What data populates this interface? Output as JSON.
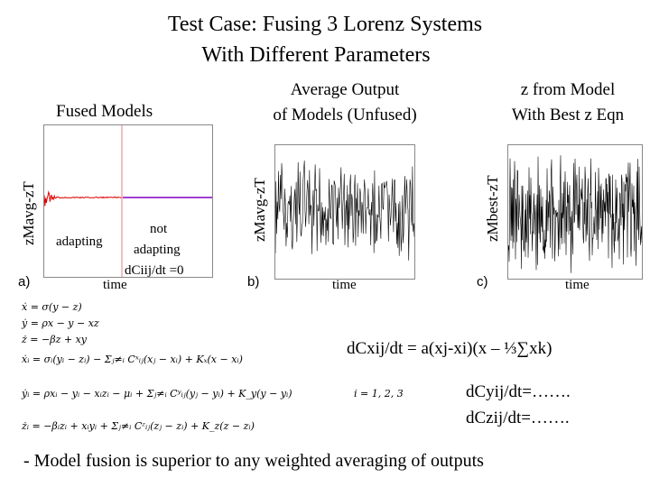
{
  "title": {
    "line1": "Test Case:  Fusing 3 Lorenz Systems",
    "line2": "With Different Parameters"
  },
  "panels": {
    "a": {
      "heading": "Fused Models",
      "ylabel": "zMavg-zT",
      "xlabel": "time",
      "tag": "a)",
      "adapting": "adapting",
      "not_adapting_1": "not",
      "not_adapting_2": "adapting",
      "dc_zero": "dCiij/dt =0"
    },
    "b": {
      "heading_1": "Average Output",
      "heading_2": "of  Models (Unfused)",
      "ylabel": "zMavg-zT",
      "xlabel": "time",
      "tag": "b)"
    },
    "c": {
      "heading_1": "z from Model",
      "heading_2": "With Best z Eqn",
      "ylabel": "zMbest-zT",
      "xlabel": "time",
      "tag": "c)"
    }
  },
  "equations": {
    "x_dot": "ẋ  =  σ(y − z)",
    "y_dot": "ẏ  =  ρx − y − xz",
    "z_dot": "ż  =  −βz + xy",
    "xi_dot": "ẋᵢ  =  σᵢ(yᵢ − zᵢ) − Σⱼ≠ᵢ Cˣᵢⱼ(xⱼ − xᵢ) + Kₓ(x − xᵢ)",
    "yi_dot": "ẏᵢ  =  ρxᵢ − yᵢ − xᵢzᵢ − μᵢ + Σⱼ≠ᵢ Cʸᵢⱼ(yⱼ − yᵢ) + K_y(y − yᵢ)",
    "zi_dot": "żᵢ  =  −βᵢzᵢ + xᵢyᵢ + Σⱼ≠ᵢ Cᶻᵢⱼ(zⱼ − zᵢ) + K_z(z − zᵢ)",
    "index_range": "i = 1, 2, 3"
  },
  "rules": {
    "dcx": "dCxij/dt  = a(xj-xi)(x – ⅓∑xk)",
    "dcy": "dCyij/dt=…….",
    "dcz": "dCzij/dt=……."
  },
  "conclusion": "- Model fusion is superior to any weighted averaging of outputs",
  "colors": {
    "fused_adapting": "#e00000",
    "fused_not_adapting": "#a040d0",
    "divider": "#e08080",
    "noise": "#000000"
  }
}
